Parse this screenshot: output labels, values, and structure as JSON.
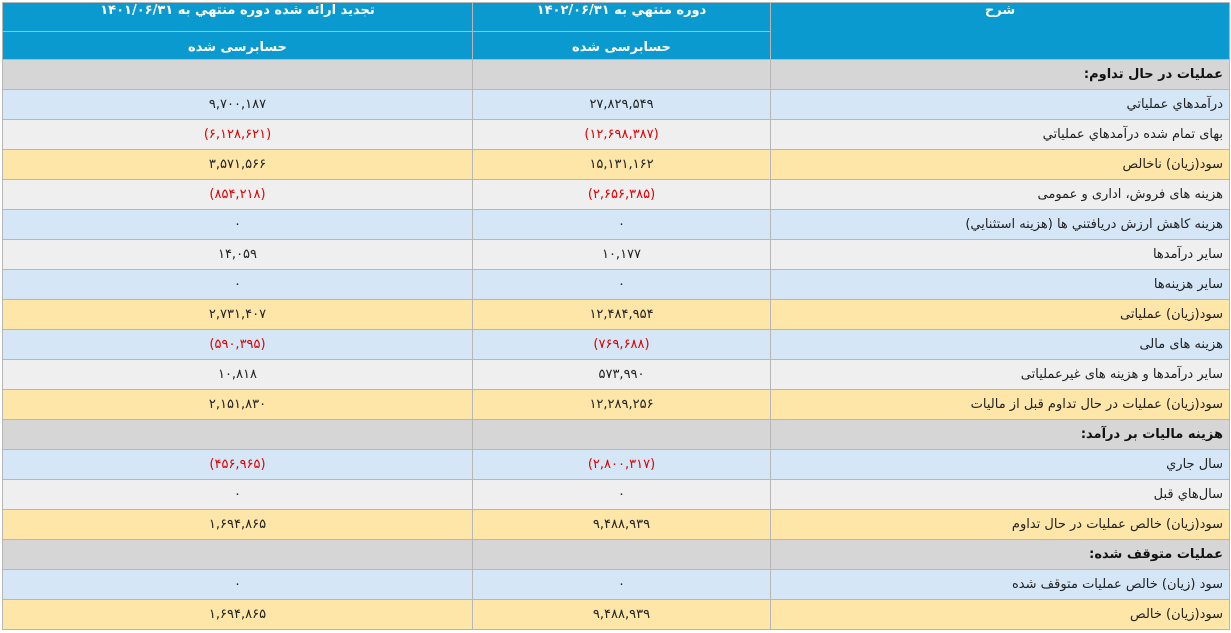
{
  "header": {
    "desc_title": "شرح",
    "period_1_title": "دوره منتهي به ۱۴۰۲/۰۶/۳۱",
    "period_2_title": "تجديد ارائه شده دوره منتهي به ۱۴۰۱/۰۶/۳۱",
    "period_1_status": "حسابرسی شده",
    "period_2_status": "حسابرسی شده"
  },
  "rows": [
    {
      "type": "section",
      "desc": "عمليات در حال تداوم:",
      "v1": "",
      "v2": "",
      "neg1": false,
      "neg2": false
    },
    {
      "type": "blue",
      "desc": "درآمدهاي عملياتي",
      "v1": "۲۷,۸۲۹,۵۴۹",
      "v2": "۹,۷۰۰,۱۸۷",
      "neg1": false,
      "neg2": false
    },
    {
      "type": "grey",
      "desc": "بهاى تمام شده درآمدهاي عملياتي",
      "v1": "(۱۲,۶۹۸,۳۸۷)",
      "v2": "(۶,۱۲۸,۶۲۱)",
      "neg1": true,
      "neg2": true
    },
    {
      "type": "yellow",
      "desc": "سود(زيان) ناخالص",
      "v1": "۱۵,۱۳۱,۱۶۲",
      "v2": "۳,۵۷۱,۵۶۶",
      "neg1": false,
      "neg2": false
    },
    {
      "type": "grey",
      "desc": "هزينه هاى فروش، ادارى و عمومى",
      "v1": "(۲,۶۵۶,۳۸۵)",
      "v2": "(۸۵۴,۲۱۸)",
      "neg1": true,
      "neg2": true
    },
    {
      "type": "blue",
      "desc": "هزينه كاهش ارزش دريافتني ها (هزينه استثنايي)",
      "v1": "۰",
      "v2": "۰",
      "neg1": false,
      "neg2": false
    },
    {
      "type": "grey",
      "desc": "ساير درآمدها",
      "v1": "۱۰,۱۷۷",
      "v2": "۱۴,۰۵۹",
      "neg1": false,
      "neg2": false
    },
    {
      "type": "blue",
      "desc": "ساير هزينه‌ها",
      "v1": "۰",
      "v2": "۰",
      "neg1": false,
      "neg2": false
    },
    {
      "type": "yellow",
      "desc": "سود(زيان) عملياتى",
      "v1": "۱۲,۴۸۴,۹۵۴",
      "v2": "۲,۷۳۱,۴۰۷",
      "neg1": false,
      "neg2": false
    },
    {
      "type": "blue",
      "desc": "هزينه هاى مالى",
      "v1": "(۷۶۹,۶۸۸)",
      "v2": "(۵۹۰,۳۹۵)",
      "neg1": true,
      "neg2": true
    },
    {
      "type": "grey",
      "desc": "ساير درآمدها و هزينه هاى غيرعملياتى",
      "v1": "۵۷۳,۹۹۰",
      "v2": "۱۰,۸۱۸",
      "neg1": false,
      "neg2": false
    },
    {
      "type": "yellow",
      "desc": "سود(زيان) عمليات در حال تداوم قبل از ماليات",
      "v1": "۱۲,۲۸۹,۲۵۶",
      "v2": "۲,۱۵۱,۸۳۰",
      "neg1": false,
      "neg2": false
    },
    {
      "type": "section",
      "desc": "هزينه ماليات بر درآمد:",
      "v1": "",
      "v2": "",
      "neg1": false,
      "neg2": false
    },
    {
      "type": "blue",
      "desc": "سال جاري",
      "v1": "(۲,۸۰۰,۳۱۷)",
      "v2": "(۴۵۶,۹۶۵)",
      "neg1": true,
      "neg2": true
    },
    {
      "type": "grey",
      "desc": "سال‌هاي قبل",
      "v1": "۰",
      "v2": "۰",
      "neg1": false,
      "neg2": false
    },
    {
      "type": "yellow",
      "desc": "سود(زيان) خالص عمليات در حال تداوم",
      "v1": "۹,۴۸۸,۹۳۹",
      "v2": "۱,۶۹۴,۸۶۵",
      "neg1": false,
      "neg2": false
    },
    {
      "type": "section",
      "desc": "عمليات متوقف شده:",
      "v1": "",
      "v2": "",
      "neg1": false,
      "neg2": false
    },
    {
      "type": "blue",
      "desc": "سود (زيان) خالص عمليات متوقف شده",
      "v1": "۰",
      "v2": "۰",
      "neg1": false,
      "neg2": false
    },
    {
      "type": "yellow",
      "desc": "سود(زيان) خالص",
      "v1": "۹,۴۸۸,۹۳۹",
      "v2": "۱,۶۹۴,۸۶۵",
      "neg1": false,
      "neg2": false
    }
  ]
}
